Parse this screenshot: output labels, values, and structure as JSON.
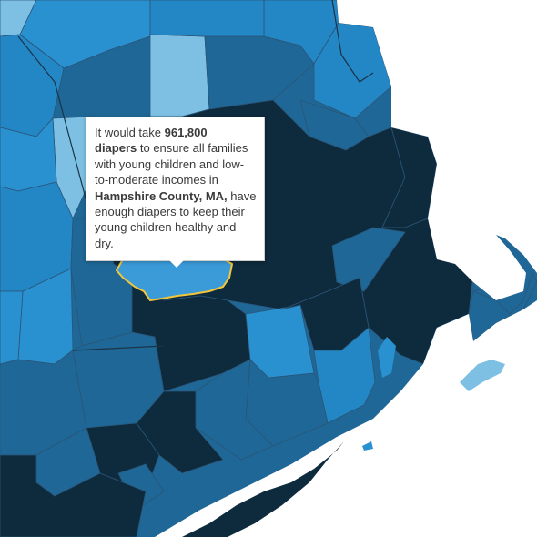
{
  "tooltip": {
    "prefix": "It would take ",
    "amount": "961,800",
    "unit": "diapers",
    "middle": " to ensure all families with young children and low-to-moderate incomes in ",
    "county": "Hampshire County, MA,",
    "suffix": " have enough diapers to keep their young children healthy and dry."
  },
  "colors": {
    "darkest": "#0e2a3d",
    "dark": "#1f6796",
    "medium": "#2387c6",
    "bright": "#2a91d0",
    "light": "#7ec0e3",
    "highlight": "#3b9ad8",
    "highlight_outline": "#f2c63c",
    "water": "#ffffff"
  }
}
